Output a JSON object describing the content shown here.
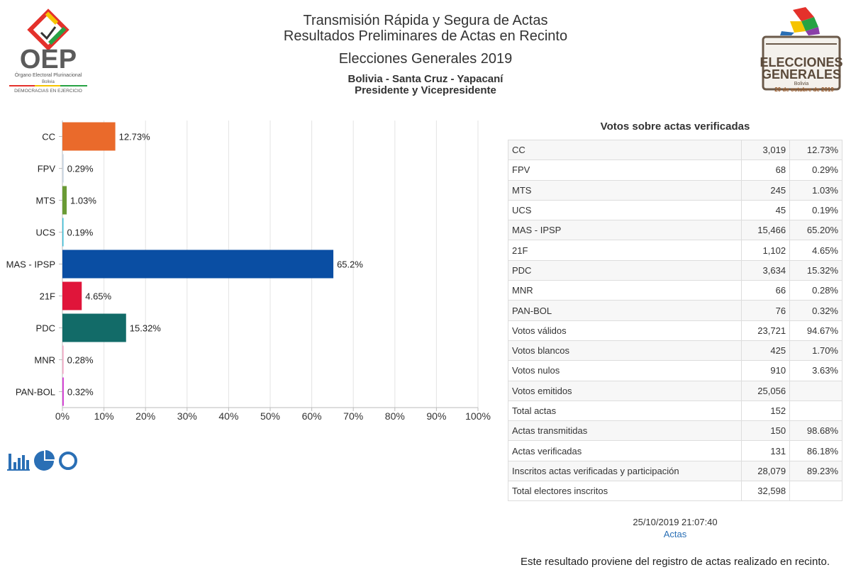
{
  "header": {
    "line1": "Transmisión Rápida y Segura de Actas",
    "line2": "Resultados Preliminares de Actas en Recinto",
    "line3": "Elecciones Generales 2019",
    "line4": "Bolivia - Santa Cruz - Yapacaní",
    "line5": "Presidente y Vicepresidente"
  },
  "logos": {
    "oep": {
      "main": "OEP",
      "sub1": "Órgano Electoral Plurinacional",
      "sub2": "Bolivia",
      "sub3": "DEMOCRACIAS EN EJERCICIO"
    },
    "eg": {
      "l1": "ELECCIONES",
      "l2": "GENERALES",
      "l3": "Bolivia",
      "l4": "20 de octubre de 2019"
    }
  },
  "chart_data": {
    "type": "bar",
    "orientation": "horizontal",
    "categories": [
      "CC",
      "FPV",
      "MTS",
      "UCS",
      "MAS - IPSP",
      "21F",
      "PDC",
      "MNR",
      "PAN-BOL"
    ],
    "values": [
      12.73,
      0.29,
      1.03,
      0.19,
      65.2,
      4.65,
      15.32,
      0.28,
      0.32
    ],
    "data_labels": [
      "12.73%",
      "0.29%",
      "1.03%",
      "0.19%",
      "65.2%",
      "4.65%",
      "15.32%",
      "0.28%",
      "0.32%"
    ],
    "colors": [
      "#ea6a2b",
      "#c9d6e3",
      "#6a9a35",
      "#3bbfd8",
      "#0a4ea3",
      "#e0153a",
      "#126b68",
      "#f2a7c4",
      "#d23ad2"
    ],
    "xlim": [
      0,
      100
    ],
    "xticks": [
      "0%",
      "10%",
      "20%",
      "30%",
      "40%",
      "50%",
      "60%",
      "70%",
      "80%",
      "90%",
      "100%"
    ],
    "grid": true,
    "title": "",
    "xlabel": "",
    "ylabel": ""
  },
  "chart_icons": [
    "bar-chart-icon",
    "pie-chart-icon",
    "donut-chart-icon"
  ],
  "table": {
    "title": "Votos sobre actas verificadas",
    "rows": [
      {
        "name": "CC",
        "votes": "3,019",
        "pct": "12.73%"
      },
      {
        "name": "FPV",
        "votes": "68",
        "pct": "0.29%"
      },
      {
        "name": "MTS",
        "votes": "245",
        "pct": "1.03%"
      },
      {
        "name": "UCS",
        "votes": "45",
        "pct": "0.19%"
      },
      {
        "name": "MAS - IPSP",
        "votes": "15,466",
        "pct": "65.20%"
      },
      {
        "name": "21F",
        "votes": "1,102",
        "pct": "4.65%"
      },
      {
        "name": "PDC",
        "votes": "3,634",
        "pct": "15.32%"
      },
      {
        "name": "MNR",
        "votes": "66",
        "pct": "0.28%"
      },
      {
        "name": "PAN-BOL",
        "votes": "76",
        "pct": "0.32%"
      },
      {
        "name": "Votos válidos",
        "votes": "23,721",
        "pct": "94.67%"
      },
      {
        "name": "Votos blancos",
        "votes": "425",
        "pct": "1.70%"
      },
      {
        "name": "Votos nulos",
        "votes": "910",
        "pct": "3.63%"
      },
      {
        "name": "Votos emitidos",
        "votes": "25,056",
        "pct": ""
      },
      {
        "name": "Total actas",
        "votes": "152",
        "pct": ""
      },
      {
        "name": "Actas transmitidas",
        "votes": "150",
        "pct": "98.68%"
      },
      {
        "name": "Actas verificadas",
        "votes": "131",
        "pct": "86.18%"
      },
      {
        "name": "Inscritos actas verificadas y participación",
        "votes": "28,079",
        "pct": "89.23%"
      },
      {
        "name": "Total electores inscritos",
        "votes": "32,598",
        "pct": ""
      }
    ]
  },
  "footer": {
    "timestamp": "25/10/2019 21:07:40",
    "link": "Actas",
    "note": "Este resultado proviene del registro de actas realizado en recinto."
  }
}
